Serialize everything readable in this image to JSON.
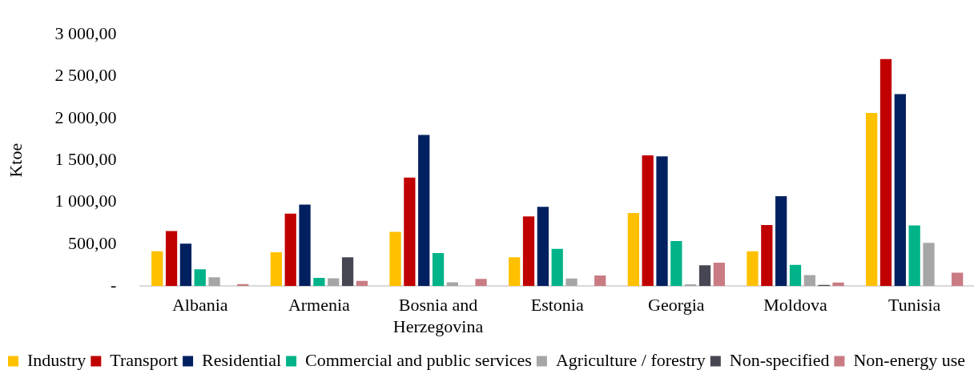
{
  "chart_data": {
    "type": "bar",
    "ylabel": "Ktoe",
    "categories": [
      "Albania",
      "Armenia",
      "Bosnia and Herzegovina",
      "Estonia",
      "Georgia",
      "Moldova",
      "Tunisia"
    ],
    "series": [
      {
        "name": "Industry",
        "color": "#ffc000",
        "values": [
          415,
          402,
          647,
          343,
          872,
          415,
          2066
        ]
      },
      {
        "name": "Transport",
        "color": "#c00000",
        "values": [
          657,
          865,
          1294,
          830,
          1560,
          727,
          2709
        ]
      },
      {
        "name": "Residential",
        "color": "#002060",
        "values": [
          505,
          972,
          1803,
          945,
          1547,
          1072,
          2291
        ]
      },
      {
        "name": "Commercial and public services",
        "color": "#00b388",
        "values": [
          200,
          97,
          394,
          443,
          537,
          252,
          723
        ]
      },
      {
        "name": "Agriculture / forestry",
        "color": "#a6a6a6",
        "values": [
          104,
          93,
          45,
          90,
          21,
          132,
          516
        ]
      },
      {
        "name": "Non-specified",
        "color": "#474753",
        "values": [
          null,
          343,
          null,
          null,
          249,
          13,
          null
        ]
      },
      {
        "name": "Non-energy use",
        "color": "#c97b84",
        "values": [
          24,
          62,
          86,
          125,
          280,
          42,
          159
        ]
      }
    ],
    "ylim": [
      0,
      3000
    ],
    "yticks": [
      {
        "value": 0,
        "label": "-"
      },
      {
        "value": 500,
        "label": "500,00"
      },
      {
        "value": 1000,
        "label": "1 000,00"
      },
      {
        "value": 1500,
        "label": "1 500,00"
      },
      {
        "value": 2000,
        "label": "2 000,00"
      },
      {
        "value": 2500,
        "label": "2 500,00"
      },
      {
        "value": 3000,
        "label": "3 000,00"
      }
    ],
    "grid": false,
    "legend": "bottom"
  }
}
